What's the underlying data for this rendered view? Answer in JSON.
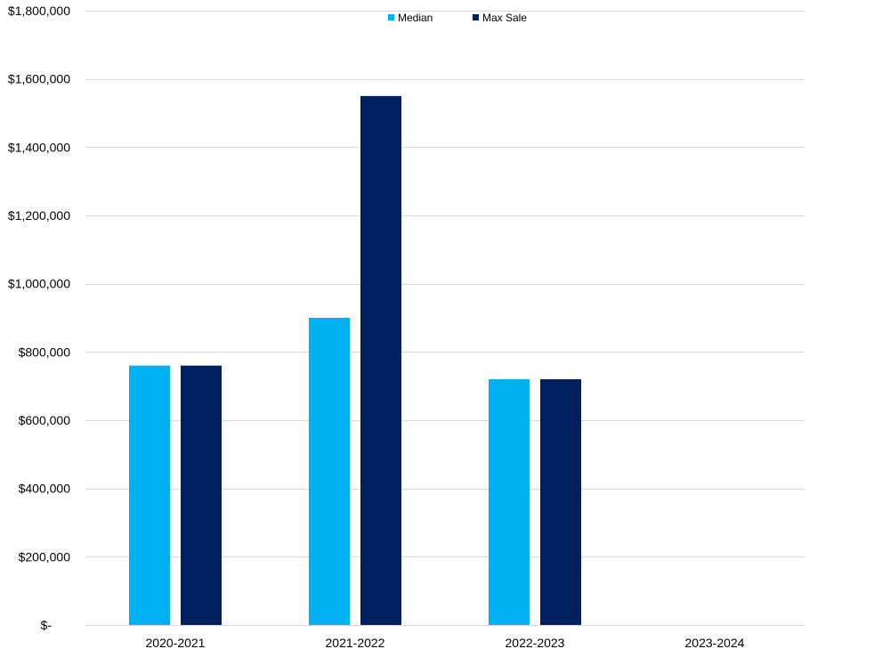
{
  "chart_data": {
    "type": "bar",
    "categories": [
      "2020-2021",
      "2021-2022",
      "2022-2023",
      "2023-2024"
    ],
    "series": [
      {
        "name": "Median",
        "color": "#00B0F0",
        "values": [
          760000,
          900000,
          720000,
          null
        ]
      },
      {
        "name": "Max Sale",
        "color": "#002060",
        "values": [
          760000,
          1550000,
          720000,
          null
        ]
      }
    ],
    "ylim": [
      0,
      1800000
    ],
    "y_ticks": [
      0,
      200000,
      400000,
      600000,
      800000,
      1000000,
      1200000,
      1400000,
      1600000,
      1800000
    ],
    "y_tick_labels": [
      "$-",
      "$200,000",
      "$400,000",
      "$600,000",
      "$800,000",
      "$1,000,000",
      "$1,200,000",
      "$1,400,000",
      "$1,600,000",
      "$1,800,000"
    ],
    "grid": true,
    "legend_position": "top-center",
    "title": "",
    "xlabel": "",
    "ylabel": ""
  }
}
